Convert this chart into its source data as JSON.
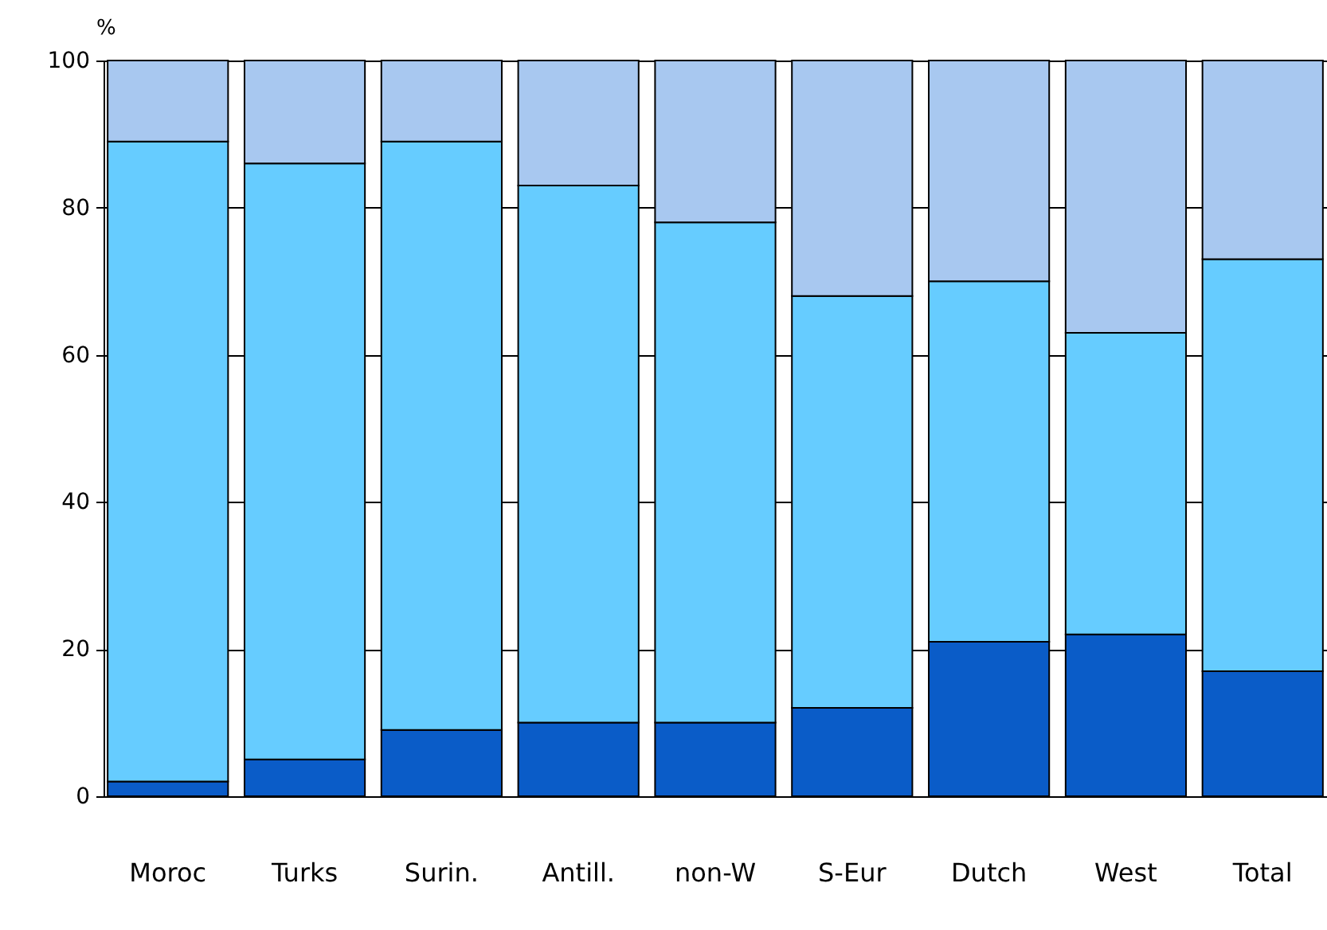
{
  "chart_data": {
    "type": "bar",
    "stacked": true,
    "ylabel": "%",
    "categories": [
      "Moroc",
      "Turks",
      "Surin.",
      "Antill.",
      "non-W",
      "S-Eur",
      "Dutch",
      "West",
      "Total"
    ],
    "series": [
      {
        "color": "#0a5cc8",
        "values": [
          2,
          5,
          9,
          10,
          10,
          12,
          21,
          22,
          17
        ]
      },
      {
        "color": "#66ccff",
        "values": [
          87,
          81,
          80,
          73,
          68,
          56,
          49,
          41,
          56
        ]
      },
      {
        "color": "#a8c8f0",
        "values": [
          11,
          14,
          11,
          17,
          22,
          32,
          30,
          37,
          27
        ]
      }
    ],
    "ylim": [
      0,
      100
    ],
    "yticks": [
      0,
      20,
      40,
      60,
      80,
      100
    ],
    "grid": "y",
    "legend": false
  }
}
